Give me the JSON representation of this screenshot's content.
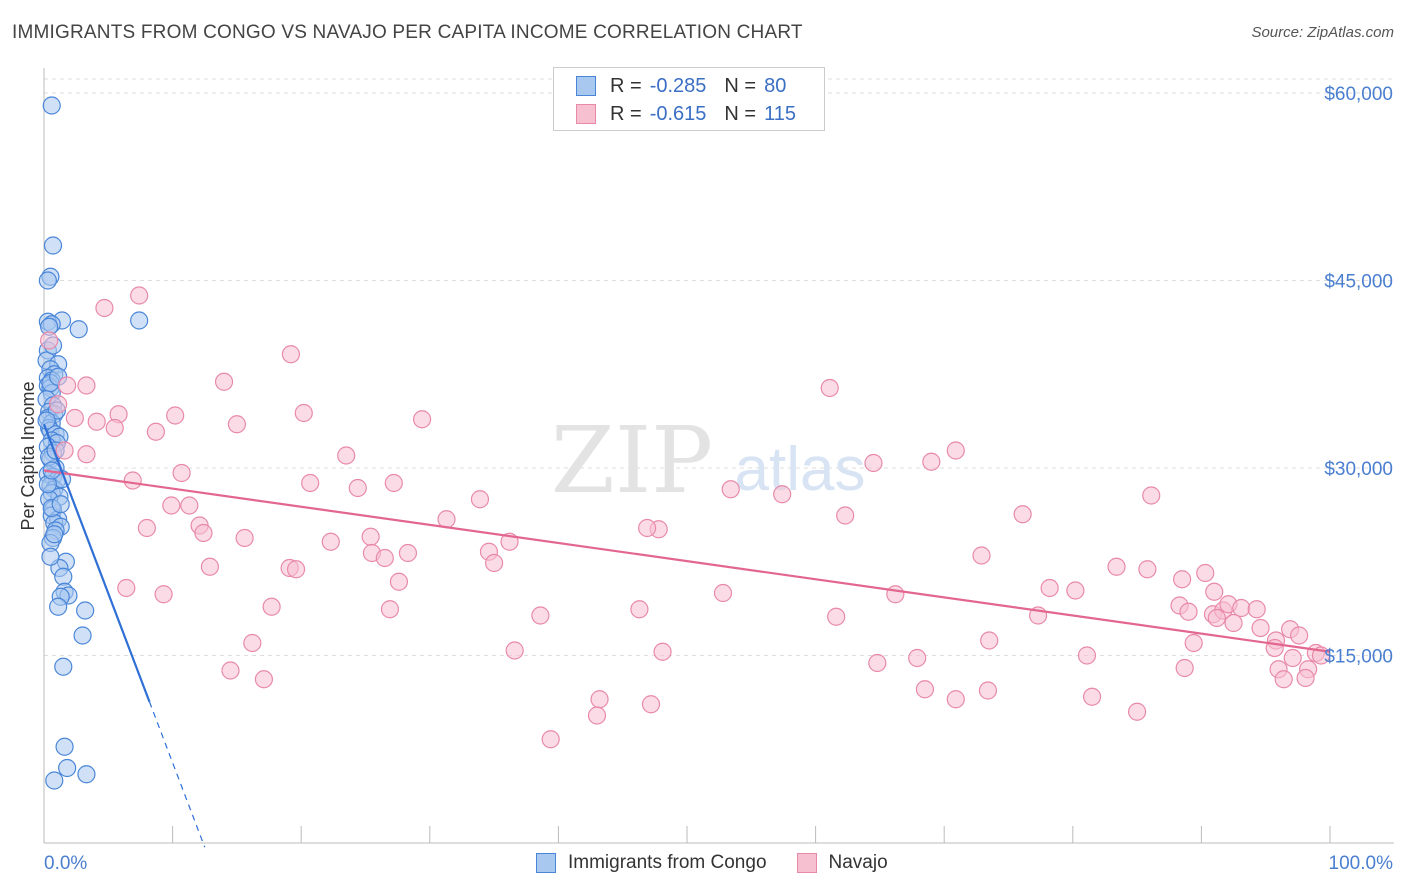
{
  "header": {
    "title": "IMMIGRANTS FROM CONGO VS NAVAJO PER CAPITA INCOME CORRELATION CHART",
    "source": "Source: ZipAtlas.com"
  },
  "watermark": {
    "zip": "ZIP",
    "atlas": "atlas"
  },
  "legend_top": {
    "rows": [
      {
        "r_label": "R =",
        "r_value": "-0.285",
        "n_label": "N =",
        "n_value": "80"
      },
      {
        "r_label": "R =",
        "r_value": "-0.615",
        "n_label": "N =",
        "n_value": "115"
      }
    ]
  },
  "legend_bottom": {
    "items": [
      "Immigrants from Congo",
      "Navajo"
    ]
  },
  "colors": {
    "congo_fill": "#a9c8f0",
    "congo_stroke": "#4a86d8",
    "congo_line": "#2f6fd6",
    "navajo_fill": "#f7c0d1",
    "navajo_stroke": "#e889a8",
    "navajo_line": "#e2668e",
    "grid": "#dddddd",
    "tick_text": "#4a7fd0",
    "watermark": "#e6e6e6"
  },
  "chart_data": {
    "type": "scatter",
    "title": "IMMIGRANTS FROM CONGO VS NAVAJO PER CAPITA INCOME CORRELATION CHART",
    "xlabel": "",
    "ylabel": "Per Capita Income",
    "xlim": [
      0,
      100
    ],
    "ylim": [
      0,
      62000
    ],
    "x_tick_labels": [
      "0.0%",
      "100.0%"
    ],
    "y_ticks": [
      15000,
      30000,
      45000,
      60000
    ],
    "y_tick_labels": [
      "$15,000",
      "$30,000",
      "$45,000",
      "$60,000"
    ],
    "grid": true,
    "series": [
      {
        "name": "Immigrants from Congo",
        "r": -0.285,
        "n": 80,
        "trend": {
          "x0": 0,
          "y0": 33500,
          "x1": 8.2,
          "y1": 11300,
          "dash_to_x": 12.5
        },
        "points": [
          [
            0.6,
            59000
          ],
          [
            0.7,
            47800
          ],
          [
            0.5,
            45300
          ],
          [
            0.3,
            45000
          ],
          [
            7.4,
            41800
          ],
          [
            1.4,
            41800
          ],
          [
            0.3,
            41700
          ],
          [
            0.6,
            41500
          ],
          [
            2.7,
            41100
          ],
          [
            0.4,
            41300
          ],
          [
            0.3,
            39400
          ],
          [
            0.2,
            38600
          ],
          [
            1.1,
            38300
          ],
          [
            0.5,
            37900
          ],
          [
            0.8,
            37500
          ],
          [
            0.3,
            37200
          ],
          [
            0.6,
            37000
          ],
          [
            0.3,
            36600
          ],
          [
            0.5,
            36400
          ],
          [
            0.6,
            36000
          ],
          [
            0.2,
            35500
          ],
          [
            0.7,
            35000
          ],
          [
            0.4,
            34500
          ],
          [
            0.8,
            34300
          ],
          [
            0.3,
            34000
          ],
          [
            0.6,
            33600
          ],
          [
            0.4,
            33200
          ],
          [
            0.5,
            33000
          ],
          [
            0.9,
            32700
          ],
          [
            1.2,
            32500
          ],
          [
            0.6,
            32200
          ],
          [
            1.0,
            32000
          ],
          [
            0.3,
            31700
          ],
          [
            0.7,
            31200
          ],
          [
            0.5,
            30700
          ],
          [
            0.9,
            30000
          ],
          [
            0.3,
            29500
          ],
          [
            0.7,
            29300
          ],
          [
            1.0,
            29000
          ],
          [
            0.5,
            28600
          ],
          [
            0.8,
            28300
          ],
          [
            0.6,
            28000
          ],
          [
            1.2,
            27700
          ],
          [
            0.4,
            27500
          ],
          [
            0.7,
            26700
          ],
          [
            0.6,
            26200
          ],
          [
            1.1,
            25900
          ],
          [
            0.8,
            25600
          ],
          [
            1.3,
            25300
          ],
          [
            0.9,
            25000
          ],
          [
            0.7,
            24400
          ],
          [
            0.5,
            24000
          ],
          [
            1.7,
            22500
          ],
          [
            1.2,
            22000
          ],
          [
            1.5,
            21300
          ],
          [
            1.6,
            20100
          ],
          [
            1.9,
            19800
          ],
          [
            1.3,
            19700
          ],
          [
            1.1,
            18900
          ],
          [
            3.2,
            18600
          ],
          [
            3.0,
            16600
          ],
          [
            1.5,
            14100
          ],
          [
            1.6,
            7700
          ],
          [
            1.8,
            6000
          ],
          [
            3.3,
            5500
          ],
          [
            0.8,
            5000
          ],
          [
            0.4,
            30900
          ],
          [
            0.9,
            31400
          ],
          [
            1.4,
            29100
          ],
          [
            0.6,
            26800
          ],
          [
            0.3,
            28700
          ],
          [
            1.0,
            34600
          ],
          [
            0.5,
            36800
          ],
          [
            0.7,
            39800
          ],
          [
            0.2,
            33800
          ],
          [
            1.3,
            27100
          ],
          [
            0.8,
            24700
          ],
          [
            0.5,
            22900
          ],
          [
            1.1,
            37300
          ],
          [
            0.6,
            29800
          ]
        ]
      },
      {
        "name": "Navajo",
        "r": -0.615,
        "n": 115,
        "trend": {
          "x0": 0,
          "y0": 29800,
          "x1": 100,
          "y1": 15300
        },
        "points": [
          [
            7.4,
            43800
          ],
          [
            4.7,
            42800
          ],
          [
            0.4,
            40200
          ],
          [
            19.2,
            39100
          ],
          [
            3.3,
            36600
          ],
          [
            1.8,
            36600
          ],
          [
            14.0,
            36900
          ],
          [
            61.1,
            36400
          ],
          [
            1.1,
            35100
          ],
          [
            2.4,
            34000
          ],
          [
            5.8,
            34300
          ],
          [
            10.2,
            34200
          ],
          [
            20.2,
            34400
          ],
          [
            29.4,
            33900
          ],
          [
            15.0,
            33500
          ],
          [
            5.5,
            33200
          ],
          [
            8.7,
            32900
          ],
          [
            4.1,
            33700
          ],
          [
            3.3,
            31100
          ],
          [
            1.6,
            31400
          ],
          [
            23.5,
            31000
          ],
          [
            70.9,
            31400
          ],
          [
            69.0,
            30500
          ],
          [
            64.5,
            30400
          ],
          [
            10.7,
            29600
          ],
          [
            6.9,
            29000
          ],
          [
            20.7,
            28800
          ],
          [
            27.2,
            28800
          ],
          [
            24.4,
            28400
          ],
          [
            53.4,
            28300
          ],
          [
            57.4,
            27900
          ],
          [
            86.1,
            27800
          ],
          [
            33.9,
            27500
          ],
          [
            9.9,
            27000
          ],
          [
            11.3,
            27000
          ],
          [
            31.3,
            25900
          ],
          [
            62.3,
            26200
          ],
          [
            76.1,
            26300
          ],
          [
            12.1,
            25400
          ],
          [
            47.8,
            25100
          ],
          [
            46.9,
            25200
          ],
          [
            8.0,
            25200
          ],
          [
            12.4,
            24800
          ],
          [
            15.6,
            24400
          ],
          [
            22.3,
            24100
          ],
          [
            25.4,
            24500
          ],
          [
            36.2,
            24100
          ],
          [
            25.5,
            23200
          ],
          [
            28.3,
            23200
          ],
          [
            34.6,
            23300
          ],
          [
            72.9,
            23000
          ],
          [
            26.5,
            22800
          ],
          [
            35.0,
            22400
          ],
          [
            19.1,
            22000
          ],
          [
            19.6,
            21900
          ],
          [
            12.9,
            22100
          ],
          [
            83.4,
            22100
          ],
          [
            85.8,
            21900
          ],
          [
            27.6,
            20900
          ],
          [
            88.5,
            21100
          ],
          [
            90.3,
            21600
          ],
          [
            6.4,
            20400
          ],
          [
            9.3,
            19900
          ],
          [
            52.8,
            20000
          ],
          [
            80.2,
            20200
          ],
          [
            66.2,
            19900
          ],
          [
            78.2,
            20400
          ],
          [
            91.0,
            20100
          ],
          [
            17.7,
            18900
          ],
          [
            26.9,
            18700
          ],
          [
            46.3,
            18700
          ],
          [
            38.6,
            18200
          ],
          [
            61.6,
            18100
          ],
          [
            77.3,
            18200
          ],
          [
            88.3,
            19000
          ],
          [
            89.0,
            18500
          ],
          [
            90.9,
            18300
          ],
          [
            91.7,
            18600
          ],
          [
            92.1,
            19100
          ],
          [
            93.1,
            18800
          ],
          [
            94.3,
            18700
          ],
          [
            91.2,
            18000
          ],
          [
            92.5,
            17600
          ],
          [
            94.6,
            17200
          ],
          [
            96.9,
            17100
          ],
          [
            95.8,
            16200
          ],
          [
            97.6,
            16600
          ],
          [
            89.4,
            16000
          ],
          [
            73.5,
            16200
          ],
          [
            16.2,
            16000
          ],
          [
            36.6,
            15400
          ],
          [
            48.1,
            15300
          ],
          [
            67.9,
            14800
          ],
          [
            64.8,
            14400
          ],
          [
            81.1,
            15000
          ],
          [
            88.7,
            14000
          ],
          [
            97.1,
            14800
          ],
          [
            98.9,
            15200
          ],
          [
            99.3,
            15000
          ],
          [
            98.3,
            13900
          ],
          [
            96.0,
            13900
          ],
          [
            98.1,
            13200
          ],
          [
            96.4,
            13100
          ],
          [
            14.5,
            13800
          ],
          [
            17.1,
            13100
          ],
          [
            68.5,
            12300
          ],
          [
            73.4,
            12200
          ],
          [
            81.5,
            11700
          ],
          [
            70.9,
            11500
          ],
          [
            85.0,
            10500
          ],
          [
            43.2,
            11500
          ],
          [
            43.0,
            10200
          ],
          [
            47.2,
            11100
          ],
          [
            39.4,
            8300
          ],
          [
            95.7,
            15600
          ]
        ]
      }
    ]
  }
}
